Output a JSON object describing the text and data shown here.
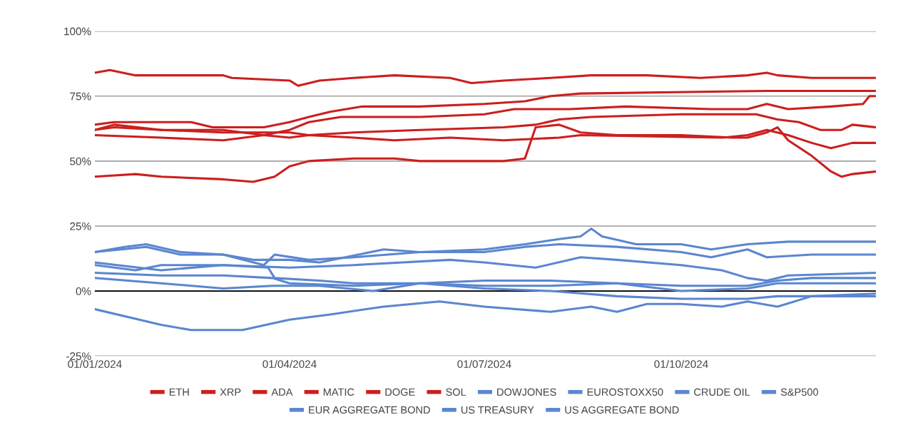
{
  "chart_data": {
    "type": "line",
    "xlim": [
      "2024-01-01",
      "2024-12-31"
    ],
    "xticks": [
      {
        "value": "2024-01-01",
        "label": "01/01/2024"
      },
      {
        "value": "2024-04-01",
        "label": "01/04/2024"
      },
      {
        "value": "2024-07-01",
        "label": "01/07/2024"
      },
      {
        "value": "2024-10-01",
        "label": "01/10/2024"
      }
    ],
    "ylim": [
      -25,
      100
    ],
    "yticks": [
      {
        "value": -25,
        "label": "-25%"
      },
      {
        "value": 0,
        "label": "0%"
      },
      {
        "value": 25,
        "label": "25%"
      },
      {
        "value": 50,
        "label": "50%"
      },
      {
        "value": 75,
        "label": "75%"
      },
      {
        "value": 100,
        "label": "100%"
      }
    ],
    "grid": "y",
    "legend": "bottom",
    "marker": "none",
    "line_style": "solid",
    "ref_lines": [
      {
        "axis": "y",
        "value": 0,
        "label": null,
        "color": "#000000"
      }
    ],
    "series": [
      {
        "name": "ETH",
        "color": "#cc1f1f",
        "x": [
          "2024-01-01",
          "2024-01-08",
          "2024-01-20",
          "2024-03-01",
          "2024-03-05",
          "2024-04-01",
          "2024-04-05",
          "2024-04-15",
          "2024-05-01",
          "2024-05-20",
          "2024-06-15",
          "2024-06-25",
          "2024-07-10",
          "2024-08-01",
          "2024-08-20",
          "2024-09-15",
          "2024-10-10",
          "2024-11-01",
          "2024-11-10",
          "2024-11-15",
          "2024-12-01",
          "2024-12-31"
        ],
        "values": [
          84,
          85,
          83,
          83,
          82,
          81,
          79,
          81,
          82,
          83,
          82,
          80,
          81,
          82,
          83,
          83,
          82,
          83,
          84,
          83,
          82,
          82
        ]
      },
      {
        "name": "XRP",
        "color": "#cc1f1f",
        "x": [
          "2024-01-01",
          "2024-01-10",
          "2024-02-15",
          "2024-02-25",
          "2024-03-20",
          "2024-04-01",
          "2024-04-10",
          "2024-04-20",
          "2024-05-05",
          "2024-06-01",
          "2024-07-01",
          "2024-07-20",
          "2024-08-01",
          "2024-08-15",
          "2024-11-10",
          "2024-12-31"
        ],
        "values": [
          64,
          65,
          65,
          63,
          63,
          65,
          67,
          69,
          71,
          71,
          72,
          73,
          75,
          76,
          77,
          77
        ]
      },
      {
        "name": "ADA",
        "color": "#cc1f1f",
        "x": [
          "2024-01-01",
          "2024-01-10",
          "2024-02-01",
          "2024-03-01",
          "2024-03-20",
          "2024-04-01",
          "2024-04-10",
          "2024-04-25",
          "2024-06-01",
          "2024-07-01",
          "2024-07-15",
          "2024-08-10",
          "2024-09-05",
          "2024-10-15",
          "2024-11-01",
          "2024-11-10",
          "2024-11-20",
          "2024-12-10",
          "2024-12-25",
          "2024-12-28",
          "2024-12-31"
        ],
        "values": [
          62,
          64,
          62,
          62,
          60,
          62,
          65,
          67,
          67,
          68,
          70,
          70,
          71,
          70,
          70,
          72,
          70,
          71,
          72,
          75,
          75
        ]
      },
      {
        "name": "MATIC",
        "color": "#cc1f1f",
        "x": [
          "2024-01-01",
          "2024-01-10",
          "2024-02-01",
          "2024-03-01",
          "2024-04-01",
          "2024-04-10",
          "2024-05-01",
          "2024-06-01",
          "2024-07-10",
          "2024-07-25",
          "2024-08-05",
          "2024-08-20",
          "2024-10-01",
          "2024-11-05",
          "2024-11-15",
          "2024-11-25",
          "2024-12-05",
          "2024-12-15",
          "2024-12-20",
          "2024-12-31"
        ],
        "values": [
          62,
          63,
          62,
          61,
          61,
          60,
          61,
          62,
          63,
          64,
          66,
          67,
          68,
          68,
          66,
          65,
          62,
          62,
          64,
          63
        ]
      },
      {
        "name": "DOGE",
        "color": "#cc1f1f",
        "x": [
          "2024-01-01",
          "2024-02-01",
          "2024-03-01",
          "2024-03-20",
          "2024-04-01",
          "2024-04-10",
          "2024-05-01",
          "2024-05-20",
          "2024-06-15",
          "2024-07-10",
          "2024-08-05",
          "2024-08-15",
          "2024-10-20",
          "2024-11-01",
          "2024-11-10",
          "2024-11-20",
          "2024-12-01",
          "2024-12-10",
          "2024-12-20",
          "2024-12-31"
        ],
        "values": [
          60,
          59,
          58,
          60,
          59,
          60,
          59,
          58,
          59,
          58,
          59,
          60,
          59,
          60,
          62,
          60,
          57,
          55,
          57,
          57
        ]
      },
      {
        "name": "SOL",
        "color": "#cc1f1f",
        "x": [
          "2024-01-01",
          "2024-01-20",
          "2024-02-01",
          "2024-03-01",
          "2024-03-15",
          "2024-03-25",
          "2024-04-01",
          "2024-04-10",
          "2024-05-01",
          "2024-05-20",
          "2024-06-01",
          "2024-07-10",
          "2024-07-20",
          "2024-07-25",
          "2024-08-05",
          "2024-08-15",
          "2024-09-01",
          "2024-10-01",
          "2024-10-25",
          "2024-11-01",
          "2024-11-10",
          "2024-11-15",
          "2024-11-20",
          "2024-12-01",
          "2024-12-10",
          "2024-12-15",
          "2024-12-20",
          "2024-12-31"
        ],
        "values": [
          44,
          45,
          44,
          43,
          42,
          44,
          48,
          50,
          51,
          51,
          50,
          50,
          51,
          63,
          64,
          61,
          60,
          60,
          59,
          59,
          61,
          63,
          58,
          52,
          46,
          44,
          45,
          46
        ]
      },
      {
        "name": "DOWJONES",
        "color": "#5b86d0",
        "x": [
          "2024-01-01",
          "2024-01-15",
          "2024-01-25",
          "2024-02-10",
          "2024-03-01",
          "2024-03-15",
          "2024-04-01",
          "2024-04-15",
          "2024-05-15",
          "2024-06-01",
          "2024-07-01",
          "2024-07-20",
          "2024-08-05",
          "2024-08-15",
          "2024-08-20",
          "2024-08-25",
          "2024-09-10",
          "2024-10-01",
          "2024-10-15",
          "2024-11-01",
          "2024-11-20",
          "2024-12-10",
          "2024-12-31"
        ],
        "values": [
          15,
          17,
          18,
          15,
          14,
          12,
          12,
          11,
          16,
          15,
          16,
          18,
          20,
          21,
          24,
          21,
          18,
          18,
          16,
          18,
          19,
          19,
          19
        ]
      },
      {
        "name": "EUROSTOXX50",
        "color": "#5b86d0",
        "x": [
          "2024-01-01",
          "2024-01-25",
          "2024-02-10",
          "2024-03-01",
          "2024-03-20",
          "2024-03-25",
          "2024-04-10",
          "2024-05-01",
          "2024-06-01",
          "2024-07-01",
          "2024-07-20",
          "2024-08-05",
          "2024-09-01",
          "2024-10-01",
          "2024-10-15",
          "2024-11-01",
          "2024-11-10",
          "2024-12-01",
          "2024-12-31"
        ],
        "values": [
          15,
          17,
          14,
          14,
          10,
          14,
          12,
          13,
          15,
          15,
          17,
          18,
          17,
          15,
          13,
          16,
          13,
          14,
          14
        ]
      },
      {
        "name": "CRUDE OIL",
        "color": "#5b86d0",
        "x": [
          "2024-01-01",
          "2024-02-01",
          "2024-03-01",
          "2024-04-01",
          "2024-05-01",
          "2024-06-15",
          "2024-07-01",
          "2024-07-25",
          "2024-08-15",
          "2024-09-01",
          "2024-10-01",
          "2024-10-20",
          "2024-11-01",
          "2024-11-10",
          "2024-11-20",
          "2024-12-31"
        ],
        "values": [
          11,
          8,
          10,
          9,
          10,
          12,
          11,
          9,
          13,
          12,
          10,
          8,
          5,
          4,
          6,
          7
        ]
      },
      {
        "name": "S&P500",
        "color": "#5b86d0",
        "x": [
          "2024-01-01",
          "2024-01-20",
          "2024-02-01",
          "2024-03-01",
          "2024-03-22",
          "2024-03-25",
          "2024-04-15",
          "2024-05-01",
          "2024-06-01",
          "2024-07-01",
          "2024-08-01",
          "2024-09-01",
          "2024-10-01",
          "2024-11-01",
          "2024-11-15",
          "2024-12-01",
          "2024-12-31"
        ],
        "values": [
          10,
          8,
          10,
          10,
          9,
          5,
          4,
          3,
          3,
          4,
          4,
          3,
          2,
          2,
          4,
          5,
          5
        ]
      },
      {
        "name": "EUR AGGREGATE BOND",
        "color": "#5b86d0",
        "x": [
          "2024-01-01",
          "2024-02-01",
          "2024-03-01",
          "2024-03-24",
          "2024-04-01",
          "2024-05-01",
          "2024-06-01",
          "2024-07-01",
          "2024-08-01",
          "2024-09-01",
          "2024-10-01",
          "2024-11-01",
          "2024-11-15",
          "2024-12-01",
          "2024-12-31"
        ],
        "values": [
          7,
          6,
          6,
          5,
          3,
          2,
          3,
          2,
          2,
          3,
          0,
          1,
          3,
          3,
          3
        ]
      },
      {
        "name": "US TREASURY",
        "color": "#5b86d0",
        "x": [
          "2024-01-01",
          "2024-02-01",
          "2024-03-01",
          "2024-03-24",
          "2024-04-15",
          "2024-05-10",
          "2024-06-01",
          "2024-07-01",
          "2024-08-01",
          "2024-09-01",
          "2024-10-01",
          "2024-11-01",
          "2024-11-15",
          "2024-12-01",
          "2024-12-31"
        ],
        "values": [
          5,
          3,
          1,
          2,
          2,
          0,
          3,
          1,
          0,
          -2,
          -3,
          -3,
          -2,
          -2,
          -2
        ]
      },
      {
        "name": "US AGGREGATE BOND",
        "color": "#5b86d0",
        "x": [
          "2024-01-01",
          "2024-02-01",
          "2024-02-15",
          "2024-03-10",
          "2024-04-01",
          "2024-04-20",
          "2024-05-15",
          "2024-06-10",
          "2024-07-01",
          "2024-08-01",
          "2024-08-20",
          "2024-09-01",
          "2024-09-15",
          "2024-10-01",
          "2024-10-20",
          "2024-11-01",
          "2024-11-15",
          "2024-12-01",
          "2024-12-31"
        ],
        "values": [
          -7,
          -13,
          -15,
          -15,
          -11,
          -9,
          -6,
          -4,
          -6,
          -8,
          -6,
          -8,
          -5,
          -5,
          -6,
          -4,
          -6,
          -2,
          -1
        ]
      }
    ]
  }
}
